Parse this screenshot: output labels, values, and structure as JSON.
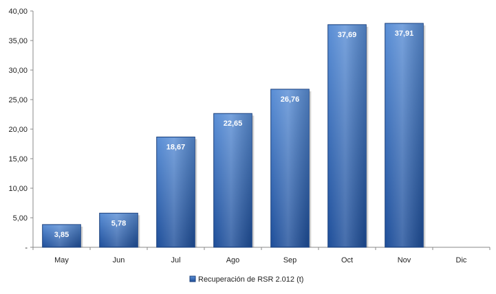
{
  "chart_data": {
    "type": "bar",
    "categories": [
      "May",
      "Jun",
      "Jul",
      "Ago",
      "Sep",
      "Oct",
      "Nov",
      "Dic"
    ],
    "series": [
      {
        "name": "Recuperación de RSR 2.012 (t)",
        "values": [
          3.85,
          5.78,
          18.67,
          22.65,
          26.76,
          37.69,
          37.91,
          null
        ],
        "labels": [
          "3,85",
          "5,78",
          "18,67",
          "22,65",
          "26,76",
          "37,69",
          "37,91",
          ""
        ]
      }
    ],
    "y_ticks": [
      "-",
      "5,00",
      "10,00",
      "15,00",
      "20,00",
      "25,00",
      "30,00",
      "35,00",
      "40,00"
    ],
    "ylim": [
      0,
      40
    ],
    "grid": false,
    "legend_position": "bottom",
    "colors": {
      "bar_top": "#5b8fd6",
      "bar_bottom": "#1f4f9a",
      "bar_edge": "#1b3f7a",
      "axis": "#888888"
    }
  }
}
